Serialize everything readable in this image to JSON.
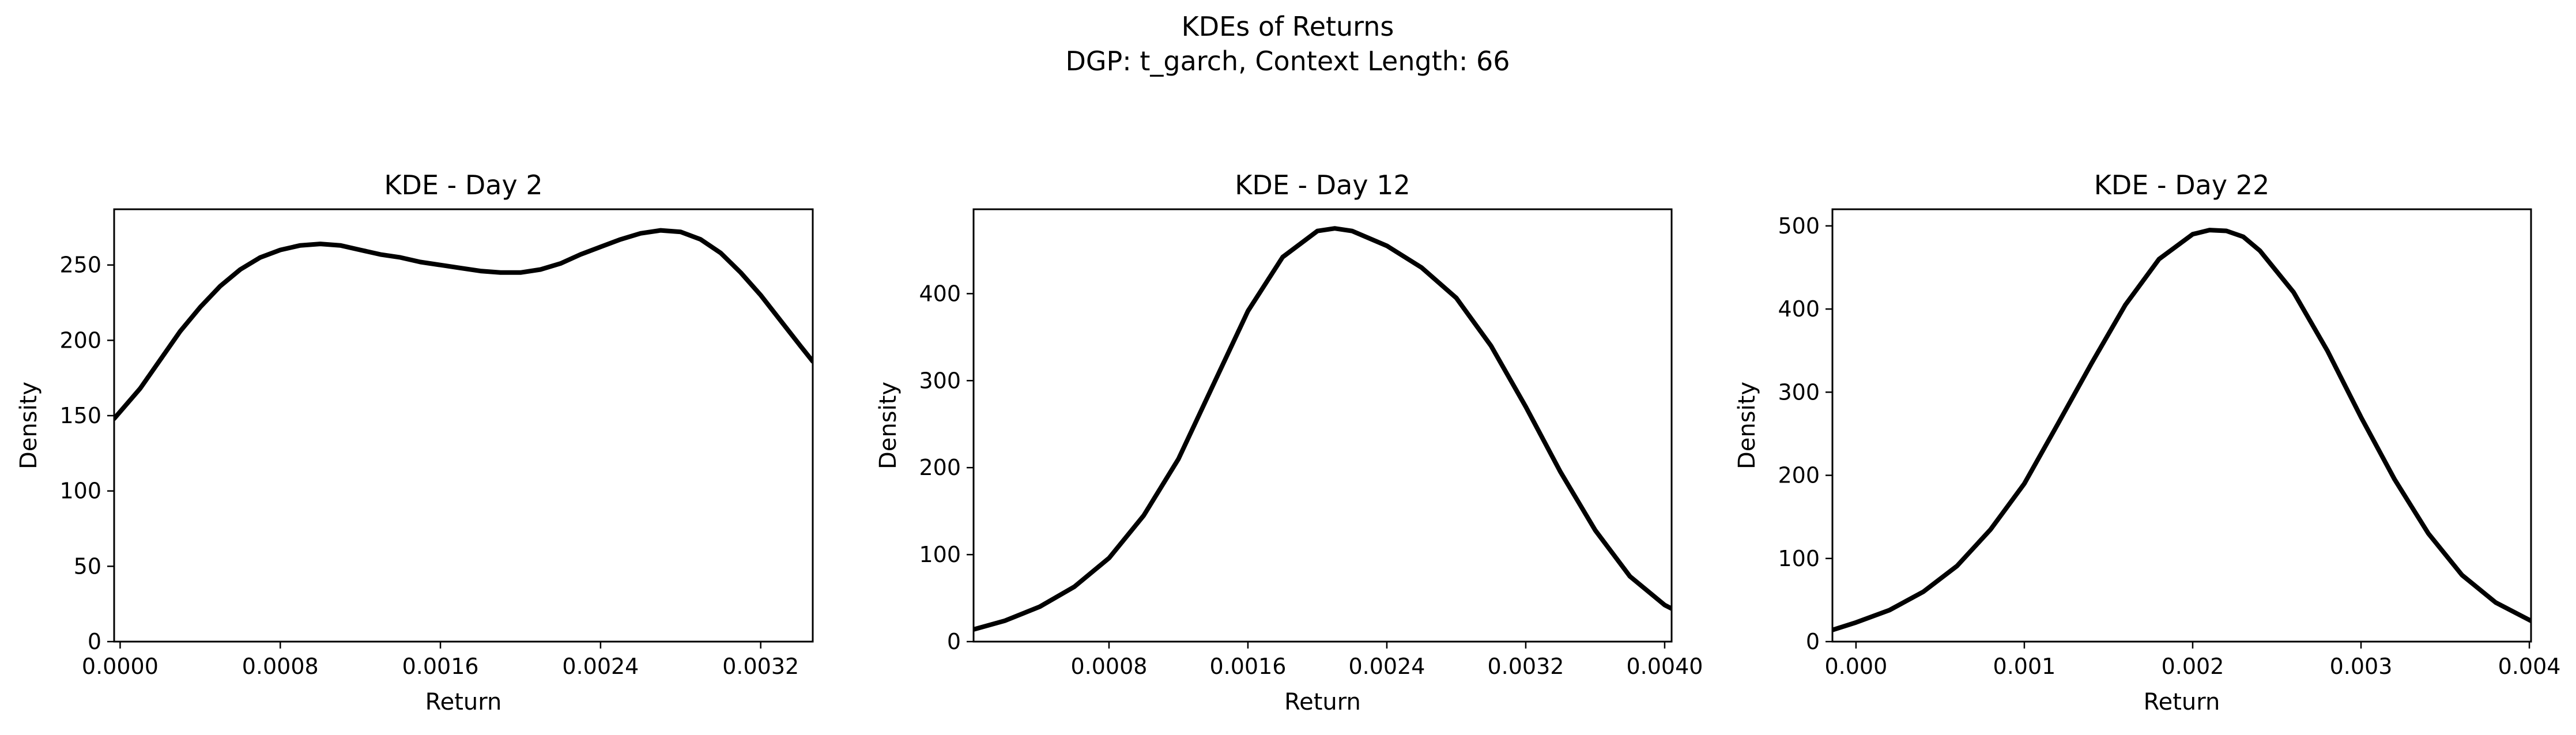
{
  "figure": {
    "title_line1": "KDEs of Returns",
    "title_line2": "DGP: t_garch, Context Length: 66"
  },
  "chart_data": [
    {
      "type": "line",
      "title": "KDE - Day 2",
      "xlabel": "Return",
      "ylabel": "Density",
      "xlim": [
        -3e-05,
        0.00346
      ],
      "ylim": [
        0,
        287
      ],
      "xticks": [
        0.0,
        0.0008,
        0.0016,
        0.0024,
        0.0032
      ],
      "xtick_labels": [
        "0.0000",
        "0.0008",
        "0.0016",
        "0.0024",
        "0.0032"
      ],
      "yticks": [
        0,
        50,
        100,
        150,
        200,
        250
      ],
      "ytick_labels": [
        "0",
        "50",
        "100",
        "150",
        "200",
        "250"
      ],
      "grid": false,
      "series": [
        {
          "color": "#000000",
          "x": [
            -3e-05,
            0.0001,
            0.0002,
            0.0003,
            0.0004,
            0.0005,
            0.0006,
            0.0007,
            0.0008,
            0.0009,
            0.001,
            0.0011,
            0.0012,
            0.0013,
            0.0014,
            0.0015,
            0.0016,
            0.0017,
            0.0018,
            0.0019,
            0.002,
            0.0021,
            0.0022,
            0.0023,
            0.0024,
            0.0025,
            0.0026,
            0.0027,
            0.0028,
            0.0029,
            0.003,
            0.0031,
            0.0032,
            0.0033,
            0.0034,
            0.00346
          ],
          "y": [
            148,
            168,
            187,
            206,
            222,
            236,
            247,
            255,
            260,
            263,
            264,
            263,
            260,
            257,
            255,
            252,
            250,
            248,
            246,
            245,
            245,
            247,
            251,
            257,
            262,
            267,
            271,
            273,
            272,
            267,
            258,
            245,
            230,
            213,
            196,
            186
          ]
        }
      ]
    },
    {
      "type": "line",
      "title": "KDE - Day 12",
      "xlabel": "Return",
      "ylabel": "Density",
      "xlim": [
        2e-05,
        0.00404
      ],
      "ylim": [
        0,
        497
      ],
      "xticks": [
        0.0008,
        0.0016,
        0.0024,
        0.0032,
        0.004
      ],
      "xtick_labels": [
        "0.0008",
        "0.0016",
        "0.0024",
        "0.0032",
        "0.0040"
      ],
      "yticks": [
        0,
        100,
        200,
        300,
        400
      ],
      "ytick_labels": [
        "0",
        "100",
        "200",
        "300",
        "400"
      ],
      "grid": false,
      "series": [
        {
          "color": "#000000",
          "x": [
            2e-05,
            0.0002,
            0.0004,
            0.0006,
            0.0008,
            0.001,
            0.0012,
            0.0014,
            0.0016,
            0.0018,
            0.002,
            0.0021,
            0.0022,
            0.0024,
            0.0026,
            0.0028,
            0.003,
            0.0032,
            0.0034,
            0.0036,
            0.0038,
            0.004,
            0.00404
          ],
          "y": [
            14,
            24,
            40,
            63,
            96,
            145,
            210,
            295,
            380,
            442,
            472,
            475,
            472,
            455,
            430,
            395,
            340,
            270,
            195,
            128,
            75,
            42,
            38
          ]
        }
      ]
    },
    {
      "type": "line",
      "title": "KDE - Day 22",
      "xlabel": "Return",
      "ylabel": "Density",
      "xlim": [
        -0.00014,
        0.00401
      ],
      "ylim": [
        0,
        520
      ],
      "xticks": [
        0.0,
        0.001,
        0.002,
        0.003,
        0.004
      ],
      "xtick_labels": [
        "0.000",
        "0.001",
        "0.002",
        "0.003",
        "0.004"
      ],
      "yticks": [
        0,
        100,
        200,
        300,
        400,
        500
      ],
      "ytick_labels": [
        "0",
        "100",
        "200",
        "300",
        "400",
        "500"
      ],
      "grid": false,
      "series": [
        {
          "color": "#000000",
          "x": [
            -0.00014,
            0.0,
            0.0002,
            0.0004,
            0.0006,
            0.0008,
            0.001,
            0.0012,
            0.0014,
            0.0016,
            0.0018,
            0.002,
            0.0021,
            0.0022,
            0.0023,
            0.0024,
            0.0026,
            0.0028,
            0.003,
            0.0032,
            0.0034,
            0.0036,
            0.0038,
            0.004,
            0.00401
          ],
          "y": [
            14,
            23,
            38,
            60,
            91,
            135,
            190,
            262,
            335,
            405,
            460,
            490,
            495,
            494,
            487,
            470,
            420,
            350,
            270,
            195,
            130,
            80,
            47,
            26,
            25
          ]
        }
      ]
    }
  ]
}
